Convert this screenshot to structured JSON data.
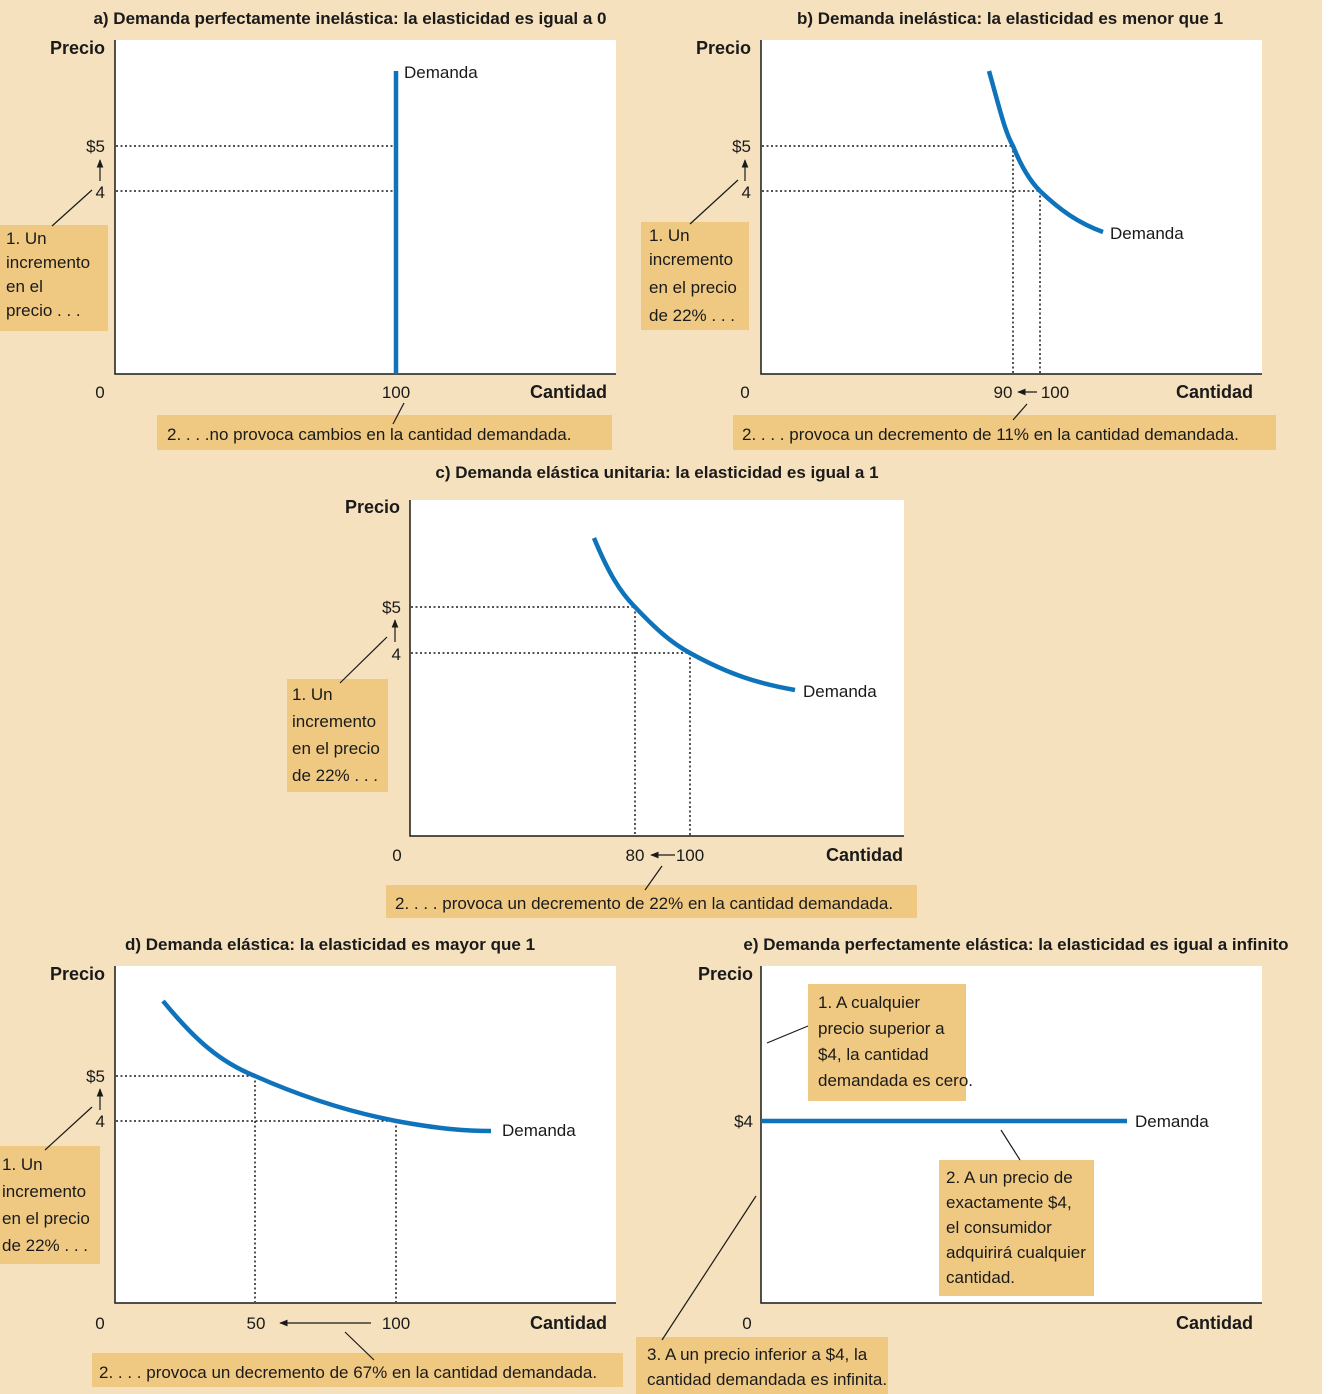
{
  "colors": {
    "background": "#f5e1bd",
    "annotation_box": "#efc981",
    "demand_curve": "#0e73bb",
    "plot_area": "#ffffff"
  },
  "chart_data": [
    {
      "type": "line",
      "title": "a) Demanda perfectamente inelástica: la elasticidad es igual a 0",
      "ylabel": "Precio",
      "xlabel": "Cantidad",
      "origin_label": "0",
      "series": [
        {
          "name": "Demanda",
          "x": [
            100,
            100
          ],
          "y": [
            0,
            6.6
          ]
        }
      ],
      "price_ticks": [
        "$5",
        "4"
      ],
      "quantity_ticks": [
        "100"
      ],
      "price_annotation": [
        "1. Un",
        "incremento",
        "en el",
        "precio . . ."
      ],
      "quantity_annotation": "2. . . .no provoca cambios en la cantidad  demandada."
    },
    {
      "type": "line",
      "title": "b) Demanda inelástica: la elasticidad es menor que 1",
      "ylabel": "Precio",
      "xlabel": "Cantidad",
      "origin_label": "0",
      "series": [
        {
          "name": "Demanda",
          "x": [
            88,
            90,
            100,
            120
          ],
          "y": [
            6.6,
            5,
            4,
            3.3
          ]
        }
      ],
      "price_ticks": [
        "$5",
        "4"
      ],
      "quantity_ticks": [
        "90",
        "100"
      ],
      "price_annotation": [
        "1. Un",
        "incremento",
        "en el precio",
        "de 22% . . ."
      ],
      "quantity_annotation": "2. . . . provoca un decremento de 11% en la cantidad demandada."
    },
    {
      "type": "line",
      "title": "c) Demanda elástica unitaria: la elasticidad es igual a 1",
      "ylabel": "Precio",
      "xlabel": "Cantidad",
      "origin_label": "0",
      "series": [
        {
          "name": "Demanda",
          "x": [
            62,
            80,
            100,
            138
          ],
          "y": [
            6.5,
            5,
            4,
            3.1
          ]
        }
      ],
      "price_ticks": [
        "$5",
        "4"
      ],
      "quantity_ticks": [
        "80",
        "100"
      ],
      "price_annotation": [
        "1. Un",
        "incremento",
        "en el precio",
        "de 22% . . ."
      ],
      "quantity_annotation": "2. . . . provoca un decremento de 22% en la cantidad demandada."
    },
    {
      "type": "line",
      "title": "d) Demanda elástica: la elasticidad es mayor que 1",
      "ylabel": "Precio",
      "xlabel": "Cantidad",
      "origin_label": "0",
      "series": [
        {
          "name": "Demanda",
          "x": [
            17,
            50,
            100,
            135
          ],
          "y": [
            6.5,
            5,
            4,
            3.8
          ]
        }
      ],
      "price_ticks": [
        "$5",
        "4"
      ],
      "quantity_ticks": [
        "50",
        "100"
      ],
      "price_annotation": [
        "1. Un",
        "incremento",
        "en el precio",
        "de 22% . . ."
      ],
      "quantity_annotation": "2. . . . provoca un decremento de 67% en la cantidad demandada."
    },
    {
      "type": "line",
      "title": "e) Demanda perfectamente elástica: la elasticidad es igual a infinito",
      "ylabel": "Precio",
      "xlabel": "Cantidad",
      "origin_label": "0",
      "series": [
        {
          "name": "Demanda",
          "x": [
            0,
            100
          ],
          "y": [
            4,
            4
          ]
        }
      ],
      "price_ticks": [
        "$4"
      ],
      "annotation_above": [
        "1. A cualquier",
        "precio superior a",
        "$4, la cantidad",
        "demandada es cero."
      ],
      "annotation_at": [
        "2. A un precio de",
        "exactamente $4,",
        "el consumidor",
        "adquirirá cualquier",
        "cantidad."
      ],
      "annotation_below": [
        "3. A un precio inferior a $4, la",
        "cantidad demandada es infinita."
      ]
    }
  ]
}
